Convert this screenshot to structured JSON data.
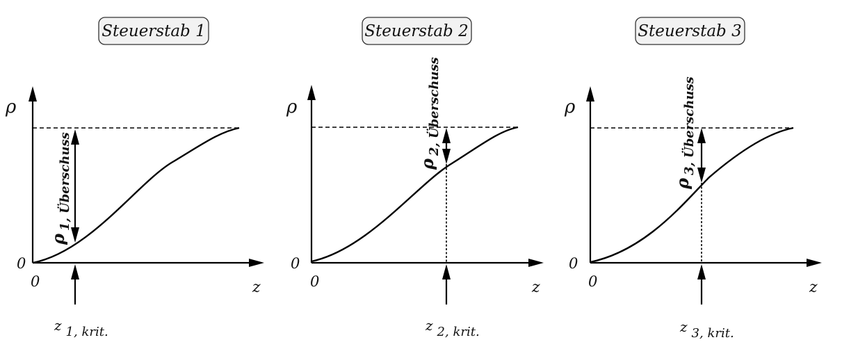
{
  "panels": [
    {
      "title": "Steuerstab 1",
      "y_axis_label": "ρ",
      "x_axis_label": "z",
      "origin_y": "0",
      "origin_x": "0",
      "rho_sym": "ρ",
      "rho_sub": "1, Überschuss",
      "zcrit_sym": "z",
      "zcrit_sub": "1, krit."
    },
    {
      "title": "Steuerstab 2",
      "y_axis_label": "ρ",
      "x_axis_label": "z",
      "origin_y": "0",
      "origin_x": "0",
      "rho_sym": "ρ",
      "rho_sub": "2, Überschuss",
      "zcrit_sym": "z",
      "zcrit_sub": "2, krit."
    },
    {
      "title": "Steuerstab 3",
      "y_axis_label": "ρ",
      "x_axis_label": "z",
      "origin_y": "0",
      "origin_x": "0",
      "rho_sym": "ρ",
      "rho_sub": "3, Überschuss",
      "zcrit_sym": "z",
      "zcrit_sub": "3, krit."
    }
  ]
}
